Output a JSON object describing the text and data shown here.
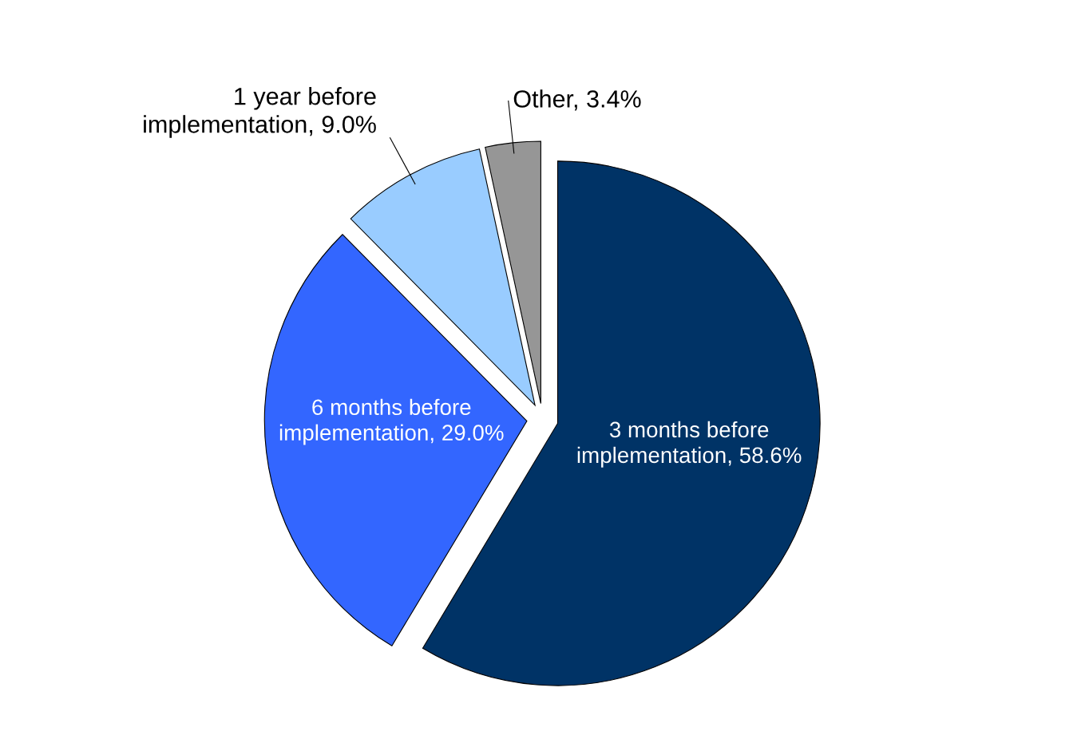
{
  "chart_data": {
    "type": "pie",
    "categories": [
      "3 months before\nimplementation",
      "6 months before\nimplementation",
      "1 year before\nimplementation",
      "Other"
    ],
    "values": [
      58.6,
      29.0,
      9.0,
      3.4
    ],
    "colors": [
      "#003366",
      "#3366ff",
      "#99ccff",
      "#969696"
    ],
    "value_labels": [
      "58.6%",
      "29.0%",
      "9.0%",
      "3.4%"
    ],
    "legend": false
  }
}
